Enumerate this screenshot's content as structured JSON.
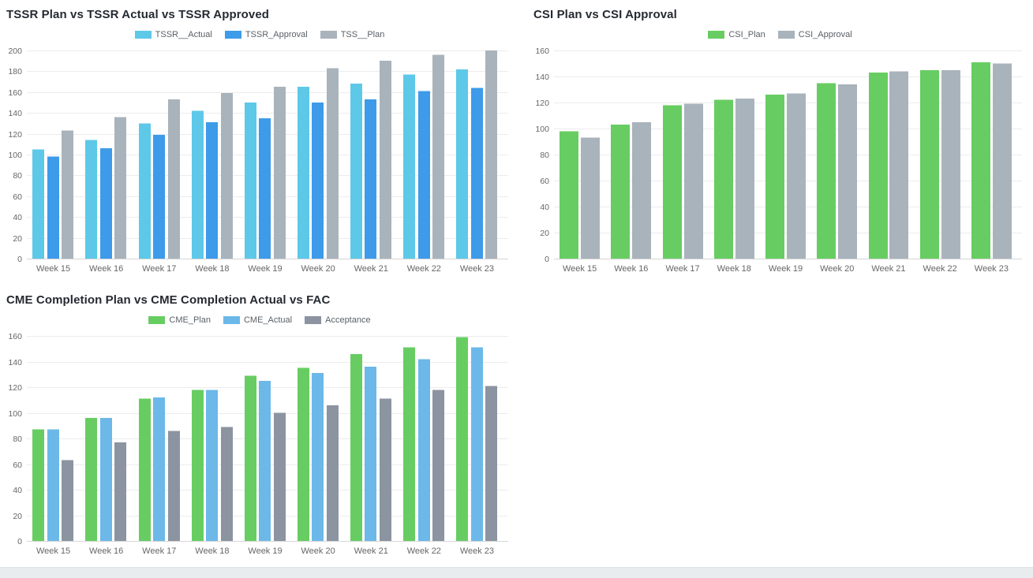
{
  "page": {
    "background_color": "#ffffff",
    "footer_bar_color": "#e8ecef",
    "gridline_color": "#ececec",
    "axis_color": "#d6d6d6",
    "tick_label_color": "#666666",
    "title_color": "#252a31"
  },
  "chart_data": [
    {
      "type": "bar",
      "title": "TSSR Plan vs TSSR Actual vs TSSR Approved",
      "xlabel": "",
      "ylabel": "",
      "ylim": [
        0,
        200
      ],
      "ytick_step": 20,
      "grid": true,
      "legend_position": "top",
      "categories": [
        "Week 15",
        "Week 16",
        "Week 17",
        "Week 18",
        "Week 19",
        "Week 20",
        "Week 21",
        "Week 22",
        "Week 23"
      ],
      "series": [
        {
          "name": "TSSR__Actual",
          "color": "#5ec8e8",
          "values": [
            105,
            114,
            130,
            142,
            150,
            165,
            168,
            177,
            182
          ]
        },
        {
          "name": "TSSR_Approval",
          "color": "#3d9be9",
          "values": [
            98,
            106,
            119,
            131,
            135,
            150,
            153,
            161,
            164
          ]
        },
        {
          "name": "TSS__Plan",
          "color": "#a9b3bc",
          "values": [
            123,
            136,
            153,
            159,
            165,
            183,
            190,
            196,
            200
          ]
        }
      ]
    },
    {
      "type": "bar",
      "title": "CSI Plan vs CSI Approval",
      "xlabel": "",
      "ylabel": "",
      "ylim": [
        0,
        160
      ],
      "ytick_step": 20,
      "grid": true,
      "legend_position": "top",
      "categories": [
        "Week 15",
        "Week 16",
        "Week 17",
        "Week 18",
        "Week 19",
        "Week 20",
        "Week 21",
        "Week 22",
        "Week 23"
      ],
      "series": [
        {
          "name": "CSI_Plan",
          "color": "#67cd62",
          "values": [
            98,
            103,
            118,
            122,
            126,
            135,
            143,
            145,
            151
          ]
        },
        {
          "name": "CSI_Approval",
          "color": "#a9b3bc",
          "values": [
            93,
            105,
            119,
            123,
            127,
            134,
            144,
            145,
            150
          ]
        }
      ]
    },
    {
      "type": "bar",
      "title": "CME Completion Plan vs CME Completion Actual vs FAC",
      "xlabel": "",
      "ylabel": "",
      "ylim": [
        0,
        160
      ],
      "ytick_step": 20,
      "grid": true,
      "legend_position": "top",
      "categories": [
        "Week 15",
        "Week 16",
        "Week 17",
        "Week 18",
        "Week 19",
        "Week 20",
        "Week 21",
        "Week 22",
        "Week 23"
      ],
      "series": [
        {
          "name": "CME_Plan",
          "color": "#67cd62",
          "values": [
            87,
            96,
            111,
            118,
            129,
            135,
            146,
            151,
            159
          ]
        },
        {
          "name": "CME_Actual",
          "color": "#6cb8e9",
          "values": [
            87,
            96,
            112,
            118,
            125,
            131,
            136,
            142,
            151
          ]
        },
        {
          "name": "Acceptance",
          "color": "#8b94a0",
          "values": [
            63,
            77,
            86,
            89,
            100,
            106,
            111,
            118,
            121
          ]
        }
      ]
    }
  ]
}
